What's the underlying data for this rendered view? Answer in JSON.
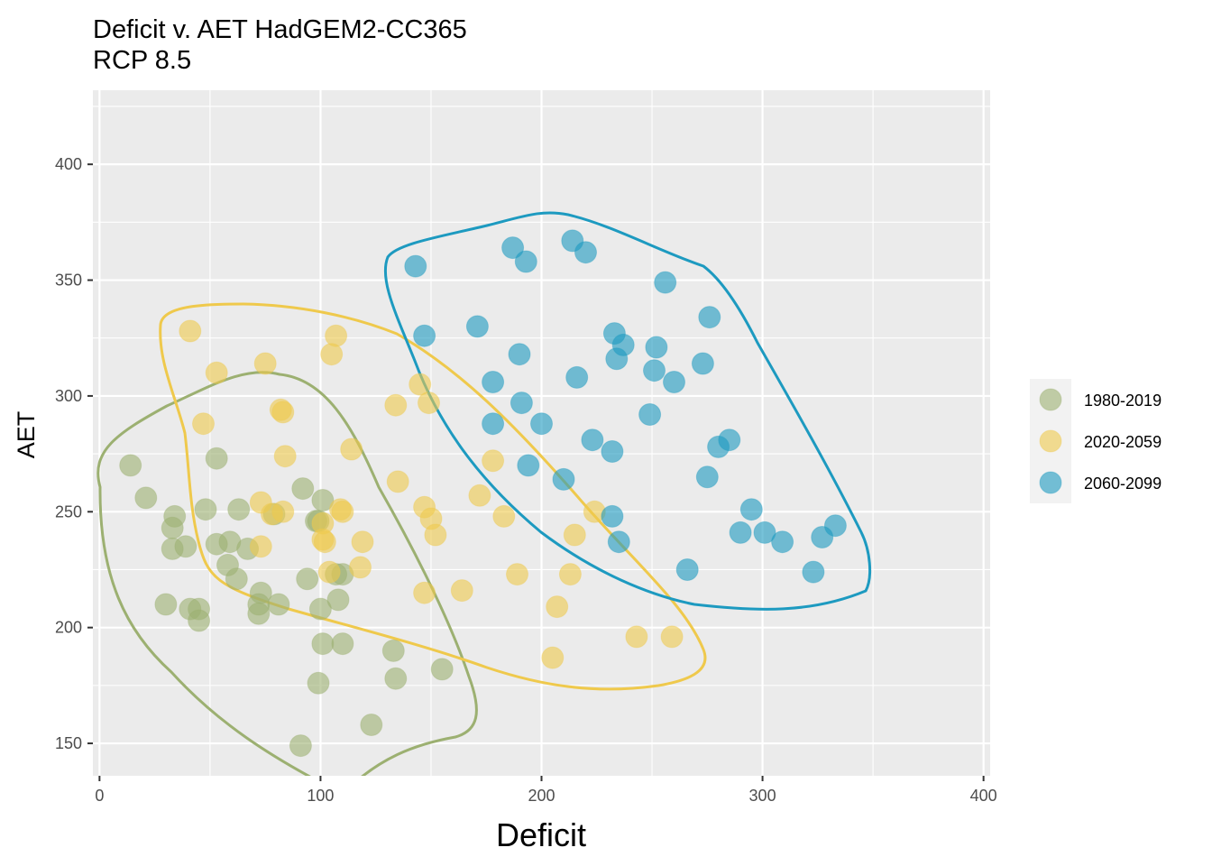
{
  "chart_data": {
    "type": "scatter",
    "title": "Deficit v. AET HadGEM2-CC365",
    "subtitle": "RCP 8.5",
    "xlabel": "Deficit",
    "ylabel": "AET",
    "xlim": [
      -3,
      403
    ],
    "ylim": [
      136,
      432
    ],
    "x_ticks": [
      0,
      100,
      200,
      300,
      400
    ],
    "y_ticks": [
      150,
      200,
      250,
      300,
      350,
      400
    ],
    "x_tick_labels": [
      "0",
      "100",
      "200",
      "300",
      "400"
    ],
    "y_tick_labels": [
      "150",
      "200",
      "250",
      "300",
      "350",
      "400"
    ],
    "grid": true,
    "legend_position": "right",
    "series": [
      {
        "name": "1980-2019",
        "color": "#9CB071",
        "points": [
          [
            14,
            270
          ],
          [
            21,
            256
          ],
          [
            34,
            248
          ],
          [
            33,
            243
          ],
          [
            33,
            234
          ],
          [
            39,
            235
          ],
          [
            30,
            210
          ],
          [
            41,
            208
          ],
          [
            45,
            208
          ],
          [
            45,
            203
          ],
          [
            48,
            251
          ],
          [
            53,
            273
          ],
          [
            53,
            236
          ],
          [
            59,
            237
          ],
          [
            58,
            227
          ],
          [
            62,
            221
          ],
          [
            63,
            251
          ],
          [
            67,
            234
          ],
          [
            73,
            215
          ],
          [
            72,
            210
          ],
          [
            72,
            206
          ],
          [
            79,
            249
          ],
          [
            81,
            210
          ],
          [
            92,
            260
          ],
          [
            94,
            221
          ],
          [
            98,
            246
          ],
          [
            99,
            246
          ],
          [
            101,
            255
          ],
          [
            100,
            208
          ],
          [
            101,
            193
          ],
          [
            99,
            176
          ],
          [
            91,
            149
          ],
          [
            107,
            223
          ],
          [
            110,
            223
          ],
          [
            108,
            212
          ],
          [
            110,
            193
          ],
          [
            123,
            158
          ],
          [
            133,
            190
          ],
          [
            134,
            178
          ],
          [
            155,
            182
          ]
        ]
      },
      {
        "name": "2020-2059",
        "color": "#EFC94C",
        "points": [
          [
            41,
            328
          ],
          [
            53,
            310
          ],
          [
            47,
            288
          ],
          [
            75,
            314
          ],
          [
            82,
            294
          ],
          [
            83,
            293
          ],
          [
            84,
            274
          ],
          [
            73,
            254
          ],
          [
            73,
            235
          ],
          [
            78,
            249
          ],
          [
            83,
            250
          ],
          [
            101,
            245
          ],
          [
            101,
            238
          ],
          [
            102,
            237
          ],
          [
            104,
            224
          ],
          [
            109,
            251
          ],
          [
            110,
            250
          ],
          [
            107,
            326
          ],
          [
            105,
            318
          ],
          [
            114,
            277
          ],
          [
            119,
            237
          ],
          [
            118,
            226
          ],
          [
            134,
            296
          ],
          [
            135,
            263
          ],
          [
            145,
            305
          ],
          [
            149,
            297
          ],
          [
            147,
            252
          ],
          [
            150,
            247
          ],
          [
            152,
            240
          ],
          [
            147,
            215
          ],
          [
            164,
            216
          ],
          [
            172,
            257
          ],
          [
            178,
            272
          ],
          [
            183,
            248
          ],
          [
            189,
            223
          ],
          [
            205,
            187
          ],
          [
            207,
            209
          ],
          [
            213,
            223
          ],
          [
            215,
            240
          ],
          [
            224,
            250
          ],
          [
            243,
            196
          ],
          [
            259,
            196
          ]
        ]
      },
      {
        "name": "2060-2099",
        "color": "#1D9AC0",
        "points": [
          [
            143,
            356
          ],
          [
            147,
            326
          ],
          [
            171,
            330
          ],
          [
            178,
            306
          ],
          [
            178,
            288
          ],
          [
            187,
            364
          ],
          [
            193,
            358
          ],
          [
            190,
            318
          ],
          [
            191,
            297
          ],
          [
            194,
            270
          ],
          [
            200,
            288
          ],
          [
            210,
            264
          ],
          [
            214,
            367
          ],
          [
            216,
            308
          ],
          [
            220,
            362
          ],
          [
            223,
            281
          ],
          [
            232,
            276
          ],
          [
            232,
            248
          ],
          [
            233,
            327
          ],
          [
            234,
            316
          ],
          [
            237,
            322
          ],
          [
            235,
            237
          ],
          [
            249,
            292
          ],
          [
            251,
            311
          ],
          [
            252,
            321
          ],
          [
            256,
            349
          ],
          [
            260,
            306
          ],
          [
            266,
            225
          ],
          [
            273,
            314
          ],
          [
            275,
            265
          ],
          [
            276,
            334
          ],
          [
            280,
            278
          ],
          [
            285,
            281
          ],
          [
            290,
            241
          ],
          [
            295,
            251
          ],
          [
            301,
            241
          ],
          [
            309,
            237
          ],
          [
            323,
            224
          ],
          [
            327,
            239
          ],
          [
            333,
            244
          ]
        ]
      }
    ]
  },
  "legend": {
    "items": [
      "1980-2019",
      "2020-2059",
      "2060-2099"
    ]
  }
}
